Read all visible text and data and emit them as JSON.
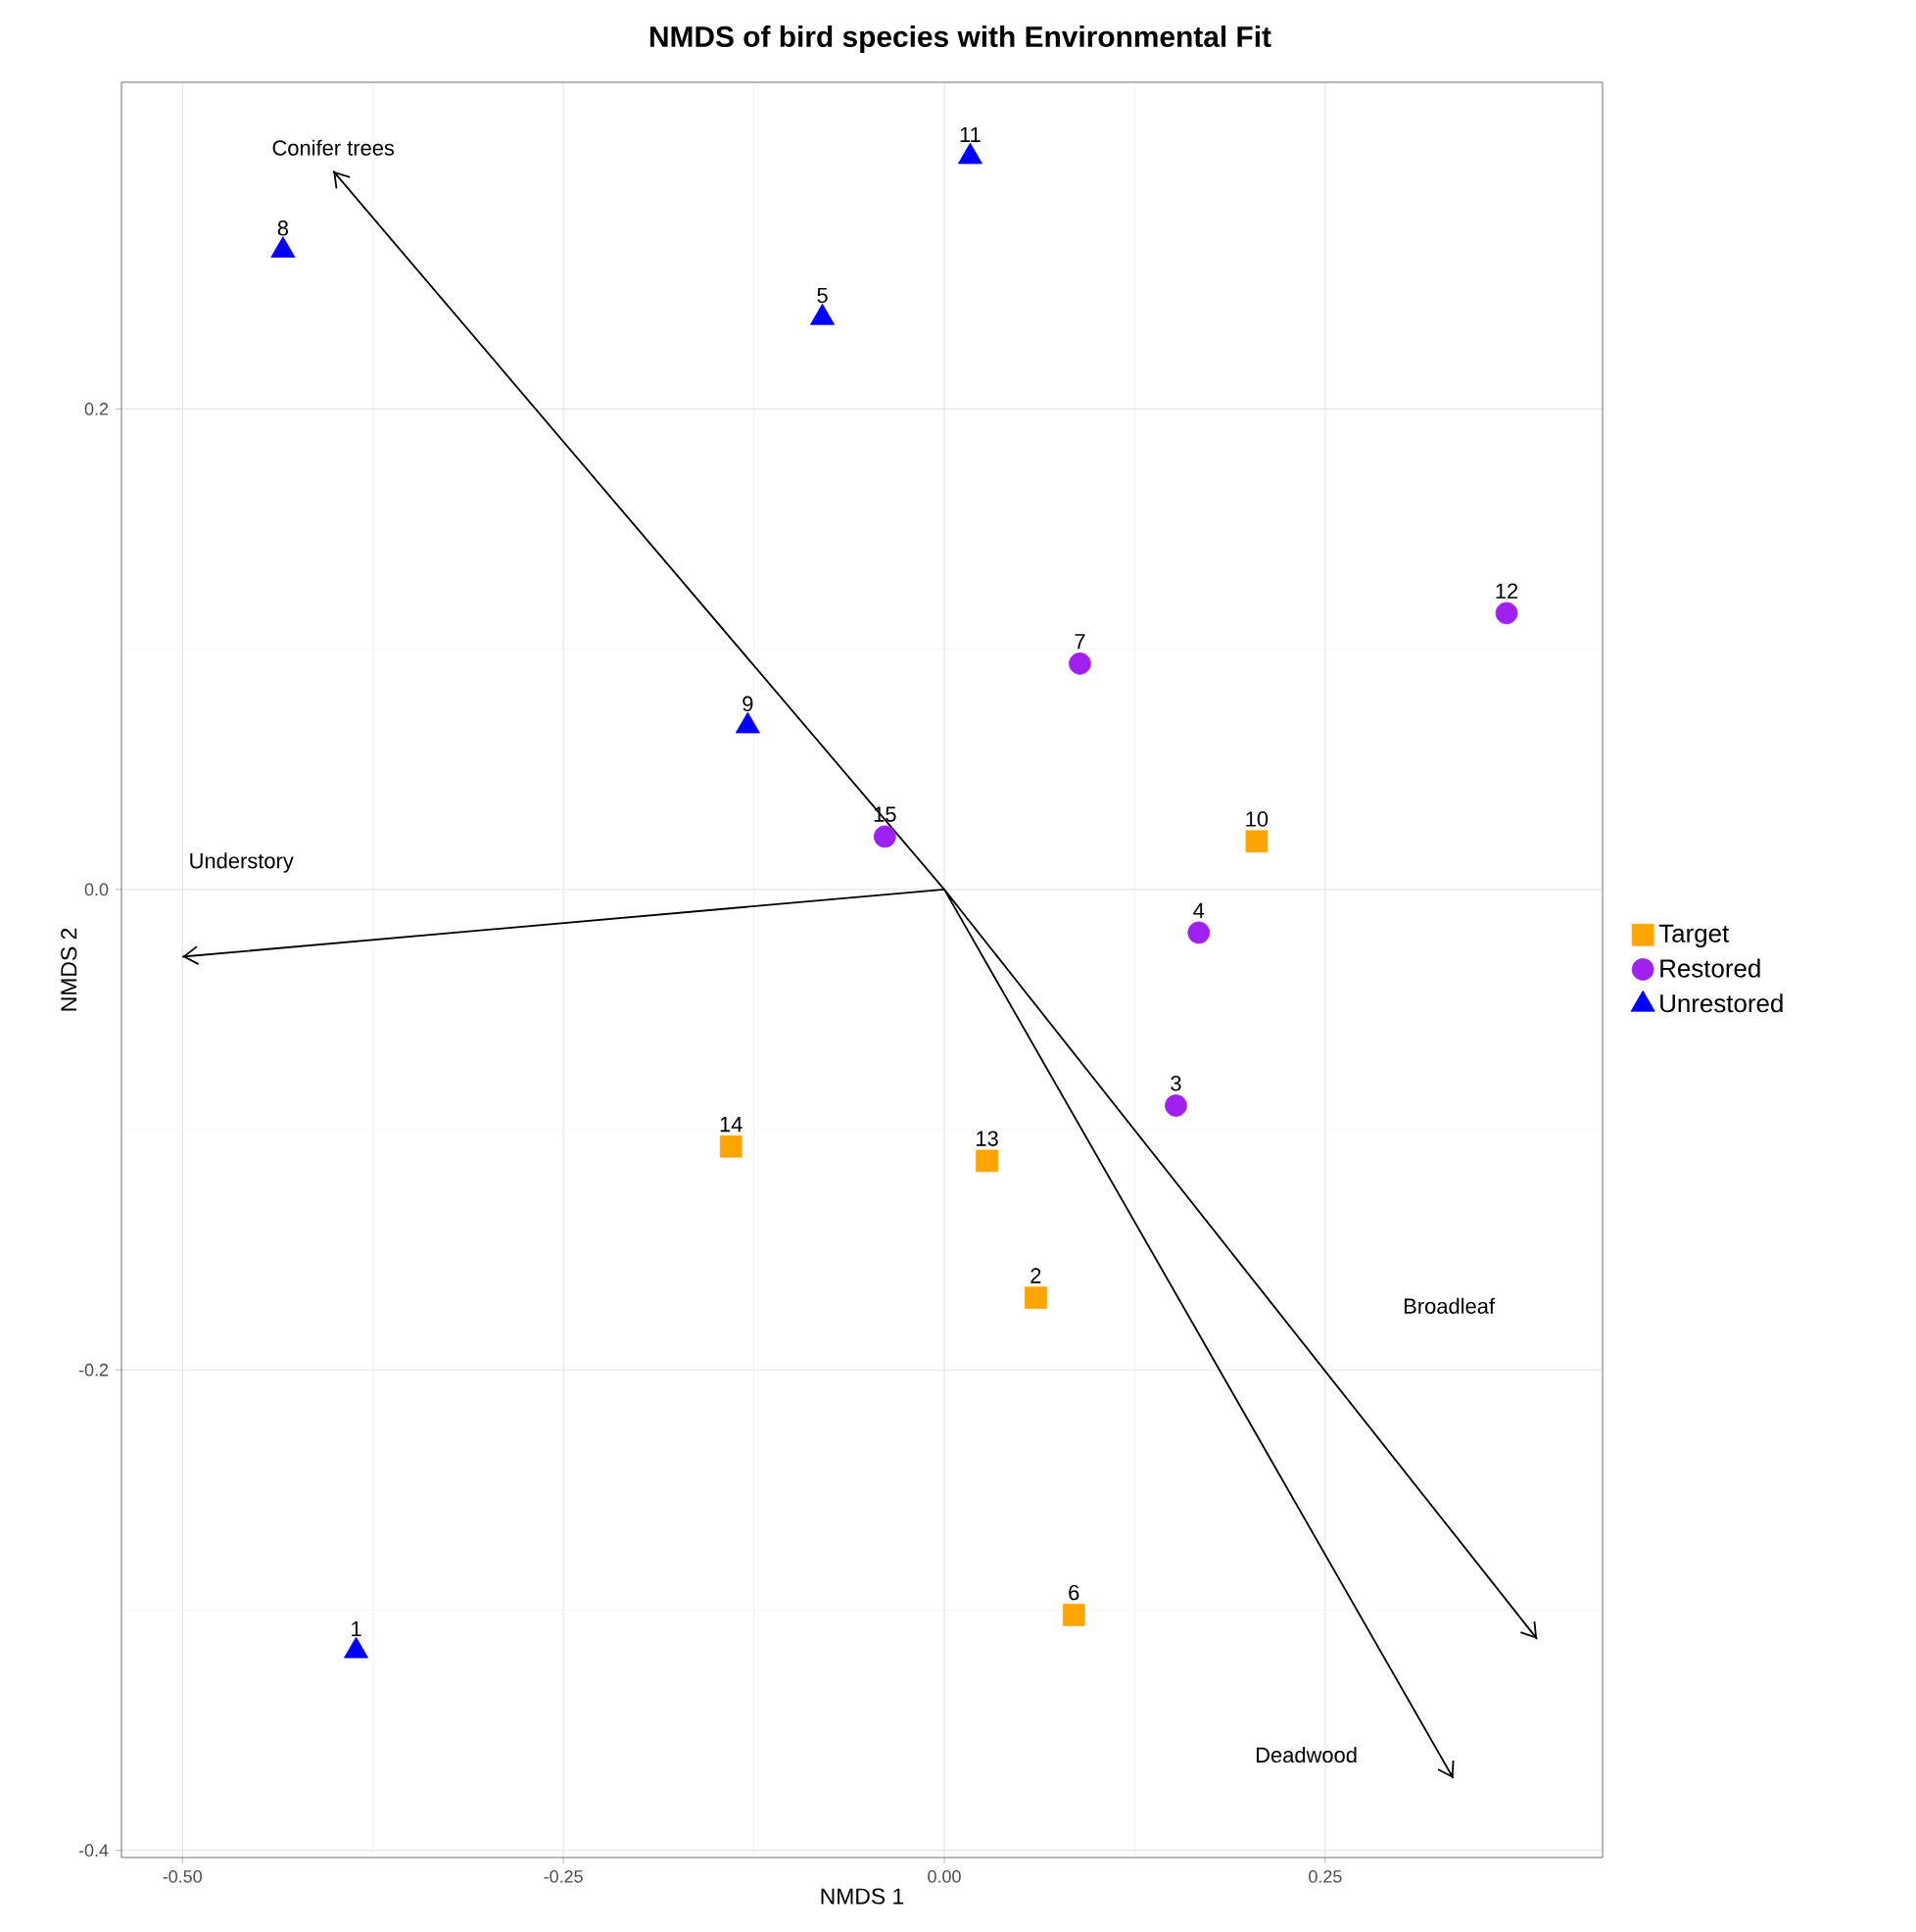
{
  "chart_data": {
    "type": "scatter",
    "title": "NMDS of bird species with Environmental Fit",
    "xlabel": "NMDS 1",
    "ylabel": "NMDS 2",
    "xlim": [
      -0.54,
      0.432
    ],
    "ylim": [
      -0.403,
      0.336
    ],
    "xticks": [
      {
        "value": -0.5,
        "label": "-0.50"
      },
      {
        "value": -0.25,
        "label": "-0.25"
      },
      {
        "value": 0,
        "label": "0.00"
      },
      {
        "value": 0.25,
        "label": "0.25"
      }
    ],
    "yticks": [
      {
        "value": -0.4,
        "label": "-0.4"
      },
      {
        "value": -0.2,
        "label": "-0.2"
      },
      {
        "value": 0,
        "label": "0.0"
      },
      {
        "value": 0.2,
        "label": "0.2"
      }
    ],
    "grid": true,
    "legend": "right",
    "series": [
      {
        "name": "Target",
        "color": "#ffa500",
        "marker": "square",
        "x": [
          0.205,
          -0.14,
          0.028,
          0.06,
          0.085
        ],
        "values": [
          0.02,
          -0.107,
          -0.113,
          -0.17,
          -0.302
        ]
      },
      {
        "name": "Restored",
        "color": "#a020f0",
        "marker": "circle",
        "x": [
          0.089,
          0.369,
          -0.039,
          0.167,
          0.152
        ],
        "values": [
          0.094,
          0.115,
          0.022,
          -0.018,
          -0.09
        ]
      },
      {
        "name": "Unrestored",
        "color": "#0000ff",
        "marker": "triangle",
        "x": [
          0.017,
          -0.434,
          -0.08,
          -0.129,
          -0.386
        ],
        "values": [
          0.305,
          0.266,
          0.238,
          0.068,
          -0.317
        ]
      },
      {
        "type": "line",
        "color": "#000000",
        "x": [
          0,
          -0.401,
          null,
          0,
          -0.5,
          null,
          0,
          0.389,
          null,
          0,
          0.334
        ],
        "values": [
          0,
          0.299,
          null,
          0,
          -0.028,
          null,
          0,
          -0.312,
          null,
          0,
          -0.37
        ]
      }
    ],
    "annotations": [
      "Conifer trees",
      "Understory",
      "Broadleaf",
      "Deadwood",
      {
        "text": "10",
        "x": 0.205,
        "y": 0.02
      },
      {
        "text": "14",
        "x": -0.14,
        "y": -0.107
      },
      {
        "text": "13",
        "x": 0.028,
        "y": -0.113
      },
      {
        "text": "2",
        "x": 0.06,
        "y": -0.17
      },
      {
        "text": "6",
        "x": 0.085,
        "y": -0.302
      },
      {
        "text": "7",
        "x": 0.089,
        "y": 0.094
      },
      {
        "text": "12",
        "x": 0.369,
        "y": 0.115
      },
      {
        "text": "15",
        "x": -0.039,
        "y": 0.022
      },
      {
        "text": "4",
        "x": 0.167,
        "y": -0.018
      },
      {
        "text": "3",
        "x": 0.152,
        "y": -0.09
      },
      {
        "text": "11",
        "x": 0.017,
        "y": 0.305
      },
      {
        "text": "8",
        "x": -0.434,
        "y": 0.266
      },
      {
        "text": "5",
        "x": -0.08,
        "y": 0.238
      },
      {
        "text": "9",
        "x": -0.129,
        "y": 0.068
      },
      {
        "text": "1",
        "x": -0.386,
        "y": -0.317
      }
    ]
  }
}
